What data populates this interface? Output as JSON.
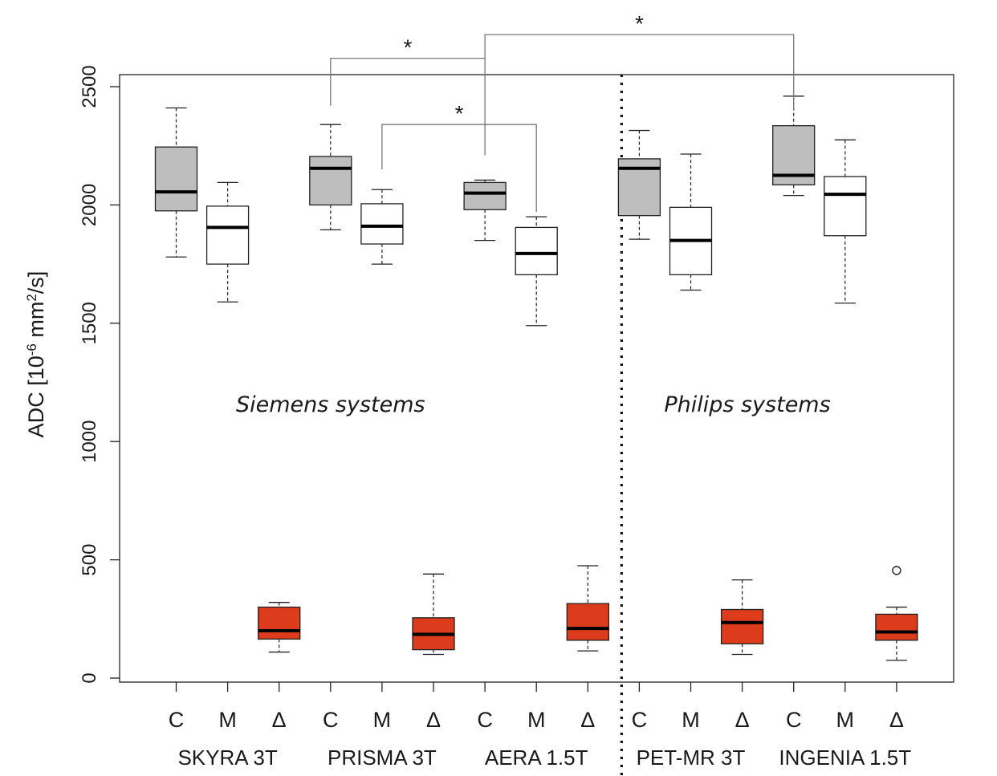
{
  "chart_data": {
    "type": "boxplot",
    "ylabel": "ADC [10-6 mm2/s]",
    "ylabel_parts": {
      "prefix": "ADC [10",
      "exp1": "-6",
      "mid": " mm",
      "exp2": "2",
      "suffix": "/s]"
    },
    "ylim": [
      0,
      2550
    ],
    "yticks": [
      0,
      500,
      1000,
      1500,
      2000,
      2500
    ],
    "category_labels": [
      "C",
      "M",
      "Δ",
      "C",
      "M",
      "Δ",
      "C",
      "M",
      "Δ",
      "C",
      "M",
      "Δ",
      "C",
      "M",
      "Δ"
    ],
    "groups": [
      {
        "name": "SKYRA 3T",
        "start": 1,
        "end": 3
      },
      {
        "name": "PRISMA 3T",
        "start": 4,
        "end": 6
      },
      {
        "name": "AERA 1.5T",
        "start": 7,
        "end": 9
      },
      {
        "name": "PET-MR 3T",
        "start": 10,
        "end": 12
      },
      {
        "name": "INGENIA 1.5T",
        "start": 13,
        "end": 15
      }
    ],
    "vendor_labels": [
      {
        "text": "Siemens systems",
        "x_position": 4.0,
        "y_value": 1160
      },
      {
        "text": "Philips systems",
        "x_position": 12.1,
        "y_value": 1160
      }
    ],
    "divider_at": 9.5,
    "fill_colors": {
      "C": "#bebebe",
      "M": "#ffffff",
      "Δ": "#dc3b1c"
    },
    "boxes": [
      {
        "pos": 1,
        "kind": "C",
        "min": 1780,
        "q1": 1975,
        "median": 2055,
        "q3": 2245,
        "max": 2410,
        "outliers": []
      },
      {
        "pos": 2,
        "kind": "M",
        "min": 1590,
        "q1": 1750,
        "median": 1905,
        "q3": 1995,
        "max": 2095,
        "outliers": []
      },
      {
        "pos": 3,
        "kind": "Δ",
        "min": 110,
        "q1": 165,
        "median": 200,
        "q3": 300,
        "max": 320,
        "outliers": []
      },
      {
        "pos": 4,
        "kind": "C",
        "min": 1895,
        "q1": 2000,
        "median": 2155,
        "q3": 2205,
        "max": 2340,
        "outliers": []
      },
      {
        "pos": 5,
        "kind": "M",
        "min": 1750,
        "q1": 1835,
        "median": 1910,
        "q3": 2005,
        "max": 2065,
        "outliers": []
      },
      {
        "pos": 6,
        "kind": "Δ",
        "min": 100,
        "q1": 120,
        "median": 185,
        "q3": 255,
        "max": 440,
        "outliers": []
      },
      {
        "pos": 7,
        "kind": "C",
        "min": 1850,
        "q1": 1980,
        "median": 2050,
        "q3": 2095,
        "max": 2105,
        "outliers": []
      },
      {
        "pos": 8,
        "kind": "M",
        "min": 1490,
        "q1": 1705,
        "median": 1795,
        "q3": 1905,
        "max": 1950,
        "outliers": []
      },
      {
        "pos": 9,
        "kind": "Δ",
        "min": 115,
        "q1": 160,
        "median": 210,
        "q3": 315,
        "max": 475,
        "outliers": []
      },
      {
        "pos": 10,
        "kind": "C",
        "min": 1855,
        "q1": 1955,
        "median": 2155,
        "q3": 2195,
        "max": 2315,
        "outliers": []
      },
      {
        "pos": 11,
        "kind": "M",
        "min": 1640,
        "q1": 1705,
        "median": 1850,
        "q3": 1990,
        "max": 2215,
        "outliers": []
      },
      {
        "pos": 12,
        "kind": "Δ",
        "min": 100,
        "q1": 145,
        "median": 235,
        "q3": 290,
        "max": 415,
        "outliers": []
      },
      {
        "pos": 13,
        "kind": "C",
        "min": 2040,
        "q1": 2085,
        "median": 2125,
        "q3": 2335,
        "max": 2460,
        "outliers": []
      },
      {
        "pos": 14,
        "kind": "M",
        "min": 1585,
        "q1": 1870,
        "median": 2045,
        "q3": 2120,
        "max": 2275,
        "outliers": []
      },
      {
        "pos": 15,
        "kind": "Δ",
        "min": 75,
        "q1": 160,
        "median": 195,
        "q3": 270,
        "max": 300,
        "outliers": [
          455
        ]
      }
    ],
    "significance": [
      {
        "from": 4,
        "to": 7,
        "top_value": 2620,
        "from_end": 2420,
        "to_end": 2210,
        "label": "*"
      },
      {
        "from": 5,
        "to": 8,
        "top_value": 2340,
        "from_end": 2150,
        "to_end": 1970,
        "label": "*"
      },
      {
        "from": 7,
        "to": 13,
        "top_value": 2720,
        "from_end": 2620,
        "to_end": 2400,
        "label": "*"
      }
    ]
  }
}
